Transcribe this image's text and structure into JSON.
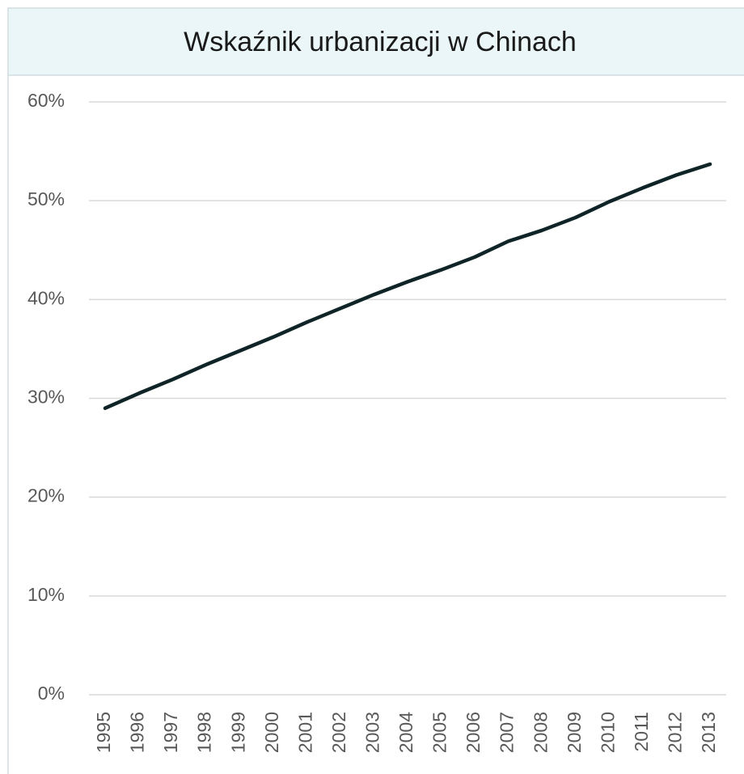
{
  "chart_data": {
    "type": "line",
    "title": "Wskaźnik urbanizacji w Chinach",
    "categories": [
      "1995",
      "1996",
      "1997",
      "1998",
      "1999",
      "2000",
      "2001",
      "2002",
      "2003",
      "2004",
      "2005",
      "2006",
      "2007",
      "2008",
      "2009",
      "2010",
      "2011",
      "2012",
      "2013"
    ],
    "series": [
      {
        "name": "Wskaźnik urbanizacji",
        "color": "#0f2427",
        "values": [
          29.0,
          30.5,
          31.9,
          33.4,
          34.8,
          36.2,
          37.7,
          39.1,
          40.5,
          41.8,
          43.0,
          44.3,
          45.9,
          47.0,
          48.3,
          49.9,
          51.3,
          52.6,
          53.7
        ]
      }
    ],
    "ylim": [
      0,
      60
    ],
    "yticks": [
      {
        "value": 0,
        "label": "0%"
      },
      {
        "value": 10,
        "label": "10%"
      },
      {
        "value": 20,
        "label": "20%"
      },
      {
        "value": 30,
        "label": "30%"
      },
      {
        "value": 40,
        "label": "40%"
      },
      {
        "value": 50,
        "label": "50%"
      },
      {
        "value": 60,
        "label": "60%"
      }
    ],
    "grid": true
  }
}
